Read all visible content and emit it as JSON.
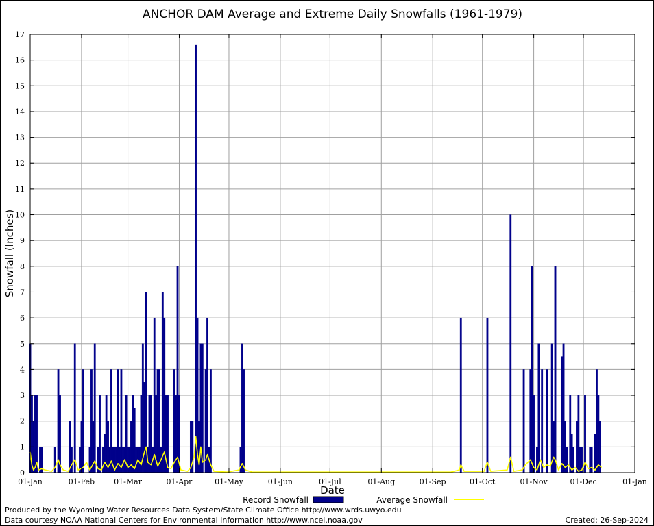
{
  "chart_data": {
    "type": "bar",
    "title": "ANCHOR DAM Average and Extreme Daily Snowfalls (1961-1979)",
    "xlabel": "Date",
    "ylabel": "Snowfall (Inches)",
    "ylim": [
      0,
      17
    ],
    "yticks": [
      0,
      1,
      2,
      3,
      4,
      5,
      6,
      7,
      8,
      9,
      10,
      11,
      12,
      13,
      14,
      15,
      16,
      17
    ],
    "xticks": [
      {
        "day": 1,
        "label": "01-Jan"
      },
      {
        "day": 32,
        "label": "01-Feb"
      },
      {
        "day": 60,
        "label": "01-Mar"
      },
      {
        "day": 91,
        "label": "01-Apr"
      },
      {
        "day": 121,
        "label": "01-May"
      },
      {
        "day": 152,
        "label": "01-Jun"
      },
      {
        "day": 182,
        "label": "01-Jul"
      },
      {
        "day": 213,
        "label": "01-Aug"
      },
      {
        "day": 244,
        "label": "01-Sep"
      },
      {
        "day": 274,
        "label": "01-Oct"
      },
      {
        "day": 305,
        "label": "01-Nov"
      },
      {
        "day": 335,
        "label": "01-Dec"
      },
      {
        "day": 366,
        "label": "01-Jan"
      }
    ],
    "grid": true,
    "legend": {
      "placement": "bottom"
    },
    "series": [
      {
        "name": "Record Snowfall",
        "kind": "bar",
        "color": "#00008b",
        "points": [
          [
            1,
            5
          ],
          [
            2,
            3
          ],
          [
            3,
            2
          ],
          [
            4,
            3
          ],
          [
            5,
            3
          ],
          [
            7,
            1
          ],
          [
            8,
            1
          ],
          [
            16,
            1
          ],
          [
            18,
            4
          ],
          [
            19,
            3
          ],
          [
            25,
            2
          ],
          [
            26,
            1
          ],
          [
            28,
            5
          ],
          [
            31,
            1
          ],
          [
            32,
            2
          ],
          [
            33,
            4
          ],
          [
            37,
            1
          ],
          [
            38,
            4
          ],
          [
            39,
            2
          ],
          [
            40,
            5
          ],
          [
            42,
            1
          ],
          [
            43,
            3
          ],
          [
            45,
            1
          ],
          [
            46,
            1.5
          ],
          [
            47,
            3
          ],
          [
            48,
            2
          ],
          [
            49,
            1
          ],
          [
            50,
            4
          ],
          [
            51,
            1
          ],
          [
            52,
            1
          ],
          [
            53,
            1
          ],
          [
            54,
            4
          ],
          [
            55,
            1
          ],
          [
            56,
            4
          ],
          [
            57,
            1
          ],
          [
            58,
            1
          ],
          [
            59,
            3
          ],
          [
            60,
            1
          ],
          [
            61,
            1
          ],
          [
            62,
            2
          ],
          [
            63,
            3
          ],
          [
            64,
            2.5
          ],
          [
            65,
            1
          ],
          [
            66,
            1
          ],
          [
            67,
            1
          ],
          [
            68,
            3
          ],
          [
            69,
            5
          ],
          [
            70,
            3.5
          ],
          [
            71,
            7
          ],
          [
            72,
            1
          ],
          [
            73,
            3
          ],
          [
            74,
            3
          ],
          [
            75,
            1
          ],
          [
            76,
            6
          ],
          [
            77,
            3
          ],
          [
            78,
            4
          ],
          [
            79,
            4
          ],
          [
            80,
            1
          ],
          [
            81,
            7
          ],
          [
            82,
            6
          ],
          [
            83,
            3
          ],
          [
            84,
            3
          ],
          [
            88,
            4
          ],
          [
            89,
            3
          ],
          [
            90,
            8
          ],
          [
            91,
            3
          ],
          [
            98,
            2
          ],
          [
            99,
            2
          ],
          [
            101,
            16.6
          ],
          [
            102,
            6
          ],
          [
            103,
            2
          ],
          [
            104,
            5
          ],
          [
            105,
            5
          ],
          [
            107,
            4
          ],
          [
            108,
            6
          ],
          [
            109,
            1
          ],
          [
            110,
            4
          ],
          [
            128,
            1
          ],
          [
            129,
            5
          ],
          [
            130,
            4
          ],
          [
            261,
            6
          ],
          [
            277,
            6
          ],
          [
            291,
            10
          ],
          [
            299,
            4
          ],
          [
            303,
            4
          ],
          [
            304,
            8
          ],
          [
            305,
            3
          ],
          [
            307,
            1
          ],
          [
            308,
            5
          ],
          [
            310,
            4
          ],
          [
            313,
            4
          ],
          [
            316,
            5
          ],
          [
            317,
            2
          ],
          [
            318,
            8
          ],
          [
            322,
            4.5
          ],
          [
            323,
            5
          ],
          [
            324,
            2
          ],
          [
            325,
            1
          ],
          [
            327,
            3
          ],
          [
            328,
            1.5
          ],
          [
            329,
            1
          ],
          [
            331,
            2
          ],
          [
            332,
            3
          ],
          [
            333,
            1
          ],
          [
            334,
            1
          ],
          [
            336,
            3
          ],
          [
            339,
            1
          ],
          [
            340,
            1
          ],
          [
            342,
            1.5
          ],
          [
            343,
            4
          ],
          [
            344,
            3
          ],
          [
            345,
            2
          ]
        ]
      },
      {
        "name": "Average Snowfall",
        "kind": "line",
        "color": "#ffff00",
        "points": [
          [
            1,
            0.8
          ],
          [
            2,
            0.3
          ],
          [
            3,
            0.1
          ],
          [
            4,
            0.2
          ],
          [
            5,
            0.4
          ],
          [
            6,
            0.1
          ],
          [
            8,
            0.15
          ],
          [
            10,
            0.1
          ],
          [
            14,
            0.05
          ],
          [
            16,
            0.2
          ],
          [
            18,
            0.5
          ],
          [
            19,
            0.3
          ],
          [
            21,
            0.1
          ],
          [
            24,
            0.05
          ],
          [
            26,
            0.3
          ],
          [
            28,
            0.5
          ],
          [
            30,
            0.1
          ],
          [
            33,
            0.2
          ],
          [
            35,
            0.4
          ],
          [
            37,
            0.1
          ],
          [
            40,
            0.45
          ],
          [
            42,
            0.15
          ],
          [
            44,
            0.1
          ],
          [
            46,
            0.4
          ],
          [
            48,
            0.2
          ],
          [
            50,
            0.45
          ],
          [
            52,
            0.1
          ],
          [
            54,
            0.35
          ],
          [
            56,
            0.2
          ],
          [
            58,
            0.5
          ],
          [
            60,
            0.2
          ],
          [
            62,
            0.3
          ],
          [
            64,
            0.15
          ],
          [
            66,
            0.5
          ],
          [
            68,
            0.3
          ],
          [
            70,
            0.8
          ],
          [
            71,
            1.0
          ],
          [
            72,
            0.4
          ],
          [
            74,
            0.3
          ],
          [
            76,
            0.7
          ],
          [
            78,
            0.25
          ],
          [
            80,
            0.5
          ],
          [
            82,
            0.8
          ],
          [
            84,
            0.2
          ],
          [
            86,
            0.15
          ],
          [
            88,
            0.4
          ],
          [
            90,
            0.6
          ],
          [
            92,
            0.1
          ],
          [
            96,
            0.05
          ],
          [
            98,
            0.2
          ],
          [
            100,
            0.6
          ],
          [
            101,
            1.4
          ],
          [
            102,
            0.7
          ],
          [
            103,
            0.3
          ],
          [
            104,
            1.0
          ],
          [
            105,
            0.4
          ],
          [
            107,
            0.5
          ],
          [
            108,
            0.7
          ],
          [
            110,
            0.3
          ],
          [
            112,
            0.05
          ],
          [
            120,
            0.02
          ],
          [
            127,
            0.1
          ],
          [
            129,
            0.35
          ],
          [
            131,
            0.1
          ],
          [
            135,
            0.02
          ],
          [
            160,
            0.02
          ],
          [
            200,
            0.02
          ],
          [
            255,
            0.02
          ],
          [
            260,
            0.1
          ],
          [
            261,
            0.3
          ],
          [
            263,
            0.05
          ],
          [
            275,
            0.05
          ],
          [
            277,
            0.4
          ],
          [
            279,
            0.05
          ],
          [
            289,
            0.1
          ],
          [
            291,
            0.6
          ],
          [
            293,
            0.05
          ],
          [
            298,
            0.1
          ],
          [
            300,
            0.3
          ],
          [
            303,
            0.5
          ],
          [
            305,
            0.2
          ],
          [
            307,
            0.1
          ],
          [
            309,
            0.5
          ],
          [
            311,
            0.2
          ],
          [
            313,
            0.3
          ],
          [
            315,
            0.25
          ],
          [
            317,
            0.6
          ],
          [
            318,
            0.5
          ],
          [
            320,
            0.1
          ],
          [
            322,
            0.35
          ],
          [
            324,
            0.2
          ],
          [
            326,
            0.3
          ],
          [
            328,
            0.1
          ],
          [
            330,
            0.2
          ],
          [
            332,
            0.05
          ],
          [
            334,
            0.1
          ],
          [
            336,
            0.4
          ],
          [
            338,
            0.15
          ],
          [
            340,
            0.2
          ],
          [
            342,
            0.1
          ],
          [
            344,
            0.3
          ],
          [
            346,
            0.2
          ]
        ]
      }
    ]
  },
  "footer": {
    "produced_by": "Produced by the Wyoming Water Resources Data System/State Climate Office http://www.wrds.uwyo.edu",
    "data_courtesy": "Data courtesy NOAA National Centers for Environmental Information http://www.ncei.noaa.gov",
    "created": "Created:  26-Sep-2024"
  }
}
